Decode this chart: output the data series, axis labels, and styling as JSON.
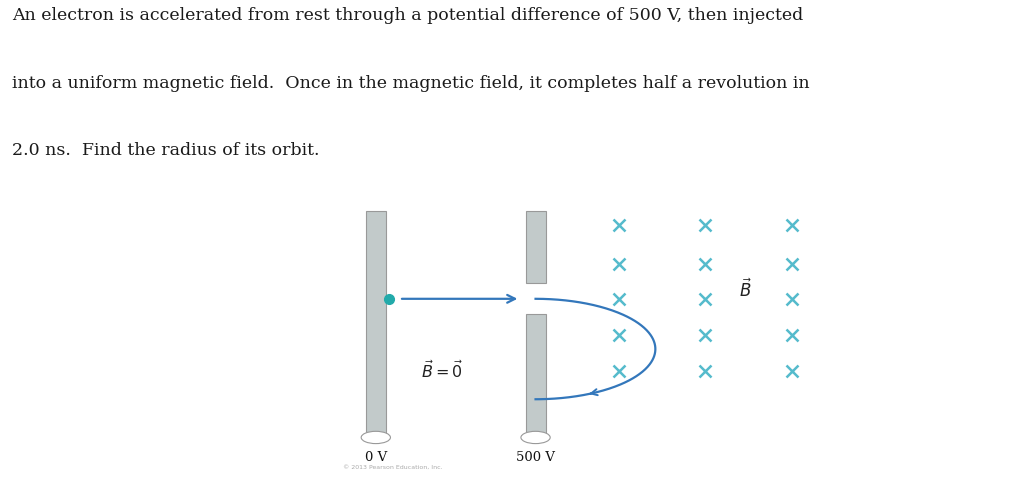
{
  "text_line1": "An electron is accelerated from rest through a potential difference of 500 V, then injected",
  "text_line2": "into a uniform magnetic field.  Once in the magnetic field, it completes half a revolution in",
  "text_line3": "2.0 ns.  Find the radius of its orbit.",
  "text_color": "#1a1a1a",
  "text_fontsize": 12.5,
  "bg_color": "#ffffff",
  "plate_color": "#c2caca",
  "plate_edge_color": "#999999",
  "cross_color": "#55bbcc",
  "dot_color": "#22aaaa",
  "arrow_color": "#3377bb",
  "curve_color": "#3377bb",
  "label_0V": "0 V",
  "label_500V": "500 V",
  "copyright": "© 2013 Pearson Education, Inc."
}
